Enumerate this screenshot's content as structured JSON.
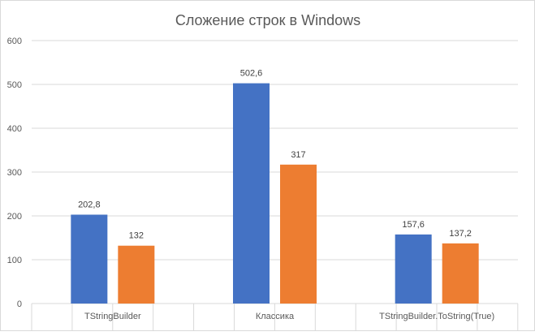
{
  "colors": {
    "series_1": "#4472c4",
    "series_2": "#ed7d31",
    "grid": "#d9d9d9",
    "text": "#595959"
  },
  "chart_data": {
    "type": "bar",
    "title": "Сложение строк в Windows",
    "categories": [
      "TStringBuilder",
      "Классика",
      "TStringBuilder.ToString(True)"
    ],
    "series": [
      {
        "values": [
          202.8,
          502.6,
          157.6
        ],
        "labels": [
          "202,8",
          "502,6",
          "157,6"
        ]
      },
      {
        "values": [
          132,
          317,
          137.2
        ],
        "labels": [
          "132",
          "317",
          "137,2"
        ]
      }
    ],
    "xlabel": "",
    "ylabel": "",
    "ylim": [
      0,
      600
    ],
    "yticks": [
      "0",
      "100",
      "200",
      "300",
      "400",
      "500",
      "600"
    ],
    "grid": true,
    "legend": "none"
  }
}
